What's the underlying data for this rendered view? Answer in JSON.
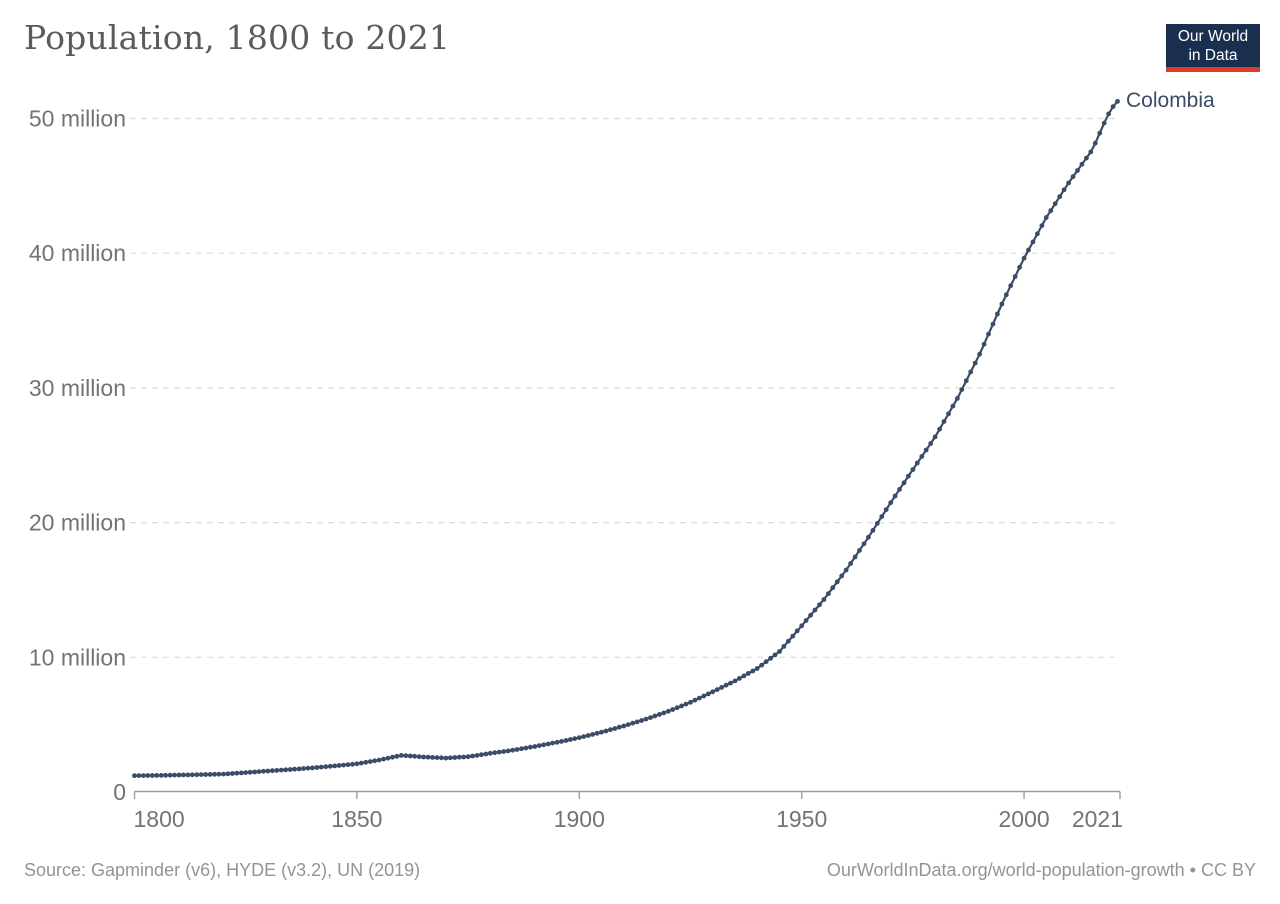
{
  "header": {
    "title": "Population, 1800 to 2021",
    "logo": {
      "line1": "Our World",
      "line2": "in Data",
      "bg_color": "#1a2e4e",
      "accent_color": "#dc3a2a"
    }
  },
  "chart_data": {
    "type": "line",
    "title": "Population, 1800 to 2021",
    "unit": "million people",
    "x_range": [
      1800,
      2021
    ],
    "ylim": [
      0,
      50
    ],
    "grid": "horizontal dashed",
    "legend_position": "label at end of line",
    "marker": "circle at every year",
    "x_ticks": [
      1800,
      1850,
      1900,
      1950,
      2000,
      2021
    ],
    "y_ticks": [
      {
        "value": 0,
        "label": "0"
      },
      {
        "value": 10,
        "label": "10 million"
      },
      {
        "value": 20,
        "label": "20 million"
      },
      {
        "value": 30,
        "label": "30 million"
      },
      {
        "value": 40,
        "label": "40 million"
      },
      {
        "value": 50,
        "label": "50 million"
      }
    ],
    "colors": {
      "line": "#3b4c66",
      "grid": "#dcdcdc",
      "axis": "#9e9e9e",
      "tick_label": "#737373"
    },
    "series": [
      {
        "name": "Colombia",
        "color": "#3b4c66",
        "points_unit": "millions",
        "points": [
          [
            1800,
            1.21
          ],
          [
            1805,
            1.23
          ],
          [
            1810,
            1.26
          ],
          [
            1815,
            1.29
          ],
          [
            1820,
            1.33
          ],
          [
            1825,
            1.44
          ],
          [
            1830,
            1.56
          ],
          [
            1835,
            1.67
          ],
          [
            1840,
            1.79
          ],
          [
            1845,
            1.94
          ],
          [
            1850,
            2.09
          ],
          [
            1855,
            2.37
          ],
          [
            1860,
            2.72
          ],
          [
            1865,
            2.6
          ],
          [
            1870,
            2.52
          ],
          [
            1875,
            2.62
          ],
          [
            1880,
            2.87
          ],
          [
            1885,
            3.1
          ],
          [
            1890,
            3.38
          ],
          [
            1895,
            3.69
          ],
          [
            1900,
            4.03
          ],
          [
            1905,
            4.44
          ],
          [
            1910,
            4.9
          ],
          [
            1915,
            5.41
          ],
          [
            1920,
            5.99
          ],
          [
            1925,
            6.66
          ],
          [
            1930,
            7.44
          ],
          [
            1935,
            8.25
          ],
          [
            1940,
            9.17
          ],
          [
            1945,
            10.43
          ],
          [
            1950,
            12.34
          ],
          [
            1955,
            14.29
          ],
          [
            1960,
            16.48
          ],
          [
            1965,
            18.91
          ],
          [
            1970,
            21.48
          ],
          [
            1975,
            23.94
          ],
          [
            1980,
            26.36
          ],
          [
            1985,
            29.22
          ],
          [
            1990,
            32.5
          ],
          [
            1995,
            36.23
          ],
          [
            2000,
            39.63
          ],
          [
            2005,
            42.65
          ],
          [
            2010,
            45.22
          ],
          [
            2015,
            47.52
          ],
          [
            2016,
            48.17
          ],
          [
            2017,
            48.91
          ],
          [
            2018,
            49.66
          ],
          [
            2019,
            50.34
          ],
          [
            2020,
            50.88
          ],
          [
            2021,
            51.27
          ]
        ]
      }
    ]
  },
  "footer": {
    "source": "Source: Gapminder (v6), HYDE (v3.2), UN (2019)",
    "attribution": "OurWorldInData.org/world-population-growth • CC BY"
  }
}
